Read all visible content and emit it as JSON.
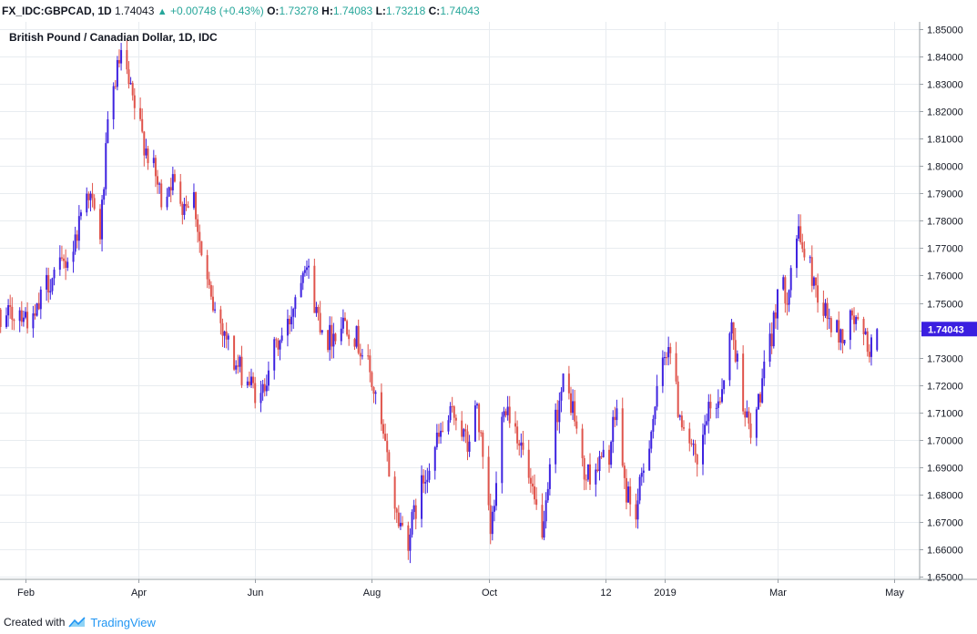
{
  "header": {
    "symbol": "FX_IDC:GBPCAD, 1D",
    "last": "1.74043",
    "change": "+0.00748 (+0.43%)",
    "open_label": "O:",
    "open": "1.73278",
    "high_label": "H:",
    "high": "1.74083",
    "low_label": "L:",
    "low": "1.73218",
    "close_label": "C:",
    "close": "1.74043",
    "up_icon": "triangle-up-icon"
  },
  "footer": {
    "created_with": "Created with",
    "brand": "TradingView",
    "brand_icon": "tradingview-logo-icon"
  },
  "colors": {
    "up": "#3e23e0",
    "down": "#e0544c",
    "grid": "#e8ecf0",
    "axis": "#131722",
    "last_price_bg": "#3b1fe0"
  },
  "chart_data": {
    "type": "candlestick",
    "title": "British Pound / Canadian Dollar, 1D, IDC",
    "ylim": [
      1.65,
      1.85
    ],
    "y_ticks": [
      "1.85000",
      "1.84000",
      "1.83000",
      "1.82000",
      "1.81000",
      "1.80000",
      "1.79000",
      "1.78000",
      "1.77000",
      "1.76000",
      "1.75000",
      "1.74000",
      "1.73000",
      "1.72000",
      "1.71000",
      "1.70000",
      "1.69000",
      "1.68000",
      "1.67000",
      "1.66000",
      "1.65000"
    ],
    "x_ticks": [
      {
        "label": "Feb",
        "date": "2018-02-01"
      },
      {
        "label": "Apr",
        "date": "2018-04-01"
      },
      {
        "label": "Jun",
        "date": "2018-06-01"
      },
      {
        "label": "Aug",
        "date": "2018-08-01"
      },
      {
        "label": "Oct",
        "date": "2018-10-01"
      },
      {
        "label": "12",
        "date": "2018-12-01"
      },
      {
        "label": "2019",
        "date": "2019-01-01"
      },
      {
        "label": "Mar",
        "date": "2019-03-01"
      },
      {
        "label": "May",
        "date": "2019-05-01"
      }
    ],
    "last_price": "1.74043",
    "close_path": [
      [
        "2018-01-10",
        1.736
      ],
      [
        "2018-01-15",
        1.748
      ],
      [
        "2018-01-22",
        1.744
      ],
      [
        "2018-01-29",
        1.748
      ],
      [
        "2018-02-05",
        1.742
      ],
      [
        "2018-02-12",
        1.757
      ],
      [
        "2018-02-19",
        1.762
      ],
      [
        "2018-02-26",
        1.77
      ],
      [
        "2018-03-05",
        1.793
      ],
      [
        "2018-03-12",
        1.775
      ],
      [
        "2018-03-16",
        1.813
      ],
      [
        "2018-03-20",
        1.832
      ],
      [
        "2018-03-23",
        1.84
      ],
      [
        "2018-03-28",
        1.826
      ],
      [
        "2018-04-03",
        1.811
      ],
      [
        "2018-04-09",
        1.798
      ],
      [
        "2018-04-13",
        1.788
      ],
      [
        "2018-04-18",
        1.795
      ],
      [
        "2018-04-24",
        1.787
      ],
      [
        "2018-04-30",
        1.789
      ],
      [
        "2018-05-04",
        1.767
      ],
      [
        "2018-05-09",
        1.75
      ],
      [
        "2018-05-16",
        1.74
      ],
      [
        "2018-05-21",
        1.728
      ],
      [
        "2018-05-28",
        1.722
      ],
      [
        "2018-06-04",
        1.714
      ],
      [
        "2018-06-08",
        1.728
      ],
      [
        "2018-06-13",
        1.735
      ],
      [
        "2018-06-18",
        1.741
      ],
      [
        "2018-06-22",
        1.753
      ],
      [
        "2018-06-27",
        1.767
      ],
      [
        "2018-07-03",
        1.747
      ],
      [
        "2018-07-09",
        1.737
      ],
      [
        "2018-07-13",
        1.74
      ],
      [
        "2018-07-18",
        1.744
      ],
      [
        "2018-07-24",
        1.737
      ],
      [
        "2018-07-30",
        1.727
      ],
      [
        "2018-08-03",
        1.714
      ],
      [
        "2018-08-09",
        1.693
      ],
      [
        "2018-08-14",
        1.672
      ],
      [
        "2018-08-20",
        1.664
      ],
      [
        "2018-08-24",
        1.675
      ],
      [
        "2018-08-29",
        1.688
      ],
      [
        "2018-09-04",
        1.699
      ],
      [
        "2018-09-10",
        1.707
      ],
      [
        "2018-09-14",
        1.71
      ],
      [
        "2018-09-20",
        1.697
      ],
      [
        "2018-09-25",
        1.713
      ],
      [
        "2018-09-28",
        1.691
      ],
      [
        "2018-10-02",
        1.665
      ],
      [
        "2018-10-05",
        1.683
      ],
      [
        "2018-10-09",
        1.715
      ],
      [
        "2018-10-15",
        1.705
      ],
      [
        "2018-10-19",
        1.695
      ],
      [
        "2018-10-24",
        1.678
      ],
      [
        "2018-10-30",
        1.666
      ],
      [
        "2018-11-05",
        1.708
      ],
      [
        "2018-11-09",
        1.72
      ],
      [
        "2018-11-14",
        1.712
      ],
      [
        "2018-11-20",
        1.686
      ],
      [
        "2018-11-26",
        1.69
      ],
      [
        "2018-12-03",
        1.695
      ],
      [
        "2018-12-07",
        1.712
      ],
      [
        "2018-12-11",
        1.683
      ],
      [
        "2018-12-17",
        1.673
      ],
      [
        "2018-12-21",
        1.69
      ],
      [
        "2018-12-27",
        1.712
      ],
      [
        "2019-01-03",
        1.737
      ],
      [
        "2019-01-08",
        1.712
      ],
      [
        "2019-01-14",
        1.7
      ],
      [
        "2019-01-18",
        1.688
      ],
      [
        "2019-01-23",
        1.708
      ],
      [
        "2019-01-30",
        1.716
      ],
      [
        "2019-02-05",
        1.741
      ],
      [
        "2019-02-11",
        1.715
      ],
      [
        "2019-02-15",
        1.7
      ],
      [
        "2019-02-21",
        1.721
      ],
      [
        "2019-02-26",
        1.737
      ],
      [
        "2019-03-01",
        1.755
      ],
      [
        "2019-03-06",
        1.754
      ],
      [
        "2019-03-11",
        1.775
      ],
      [
        "2019-03-14",
        1.771
      ],
      [
        "2019-03-19",
        1.76
      ],
      [
        "2019-03-25",
        1.748
      ],
      [
        "2019-03-29",
        1.742
      ],
      [
        "2019-04-04",
        1.737
      ],
      [
        "2019-04-09",
        1.745
      ],
      [
        "2019-04-15",
        1.737
      ],
      [
        "2019-04-19",
        1.733
      ],
      [
        "2019-04-22",
        1.74
      ]
    ]
  }
}
